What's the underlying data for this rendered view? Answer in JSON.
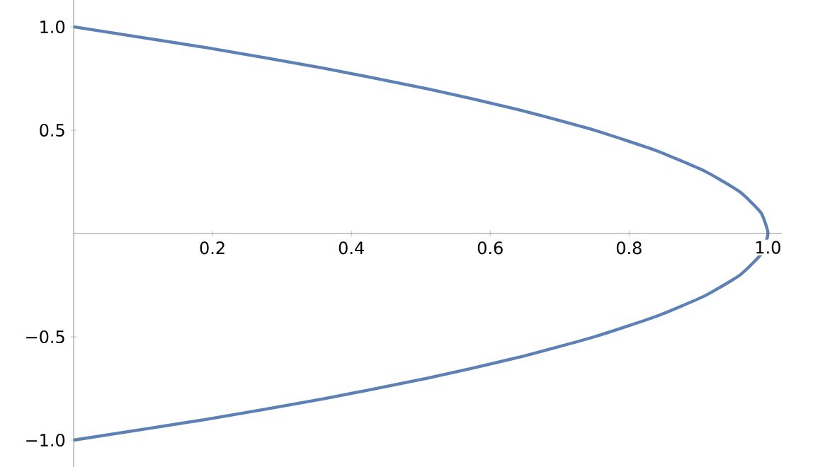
{
  "chart_data": {
    "type": "line",
    "xlim": [
      0,
      1.02
    ],
    "ylim": [
      -1.13,
      1.13
    ],
    "xticks": [
      {
        "value": 0.2,
        "label": "0.2"
      },
      {
        "value": 0.4,
        "label": "0.4"
      },
      {
        "value": 0.6,
        "label": "0.6"
      },
      {
        "value": 0.8,
        "label": "0.8"
      },
      {
        "value": 1.0,
        "label": "1.0"
      }
    ],
    "yticks": [
      {
        "value": -1.0,
        "label": "−1.0"
      },
      {
        "value": -0.5,
        "label": "−0.5"
      },
      {
        "value": 0.5,
        "label": "0.5"
      },
      {
        "value": 1.0,
        "label": "1.0"
      }
    ],
    "series": [
      {
        "color": "#5e81b5",
        "x": [
          0,
          0.19,
          0.36,
          0.51,
          0.64,
          0.75,
          0.84,
          0.91,
          0.96,
          0.99,
          1.0,
          0.99,
          0.96,
          0.91,
          0.84,
          0.75,
          0.64,
          0.51,
          0.36,
          0.19,
          0
        ],
        "values": [
          1.0,
          0.9,
          0.8,
          0.7,
          0.6,
          0.5,
          0.4,
          0.3,
          0.2,
          0.1,
          0,
          -0.1,
          -0.2,
          -0.3,
          -0.4,
          -0.5,
          -0.6,
          -0.7,
          -0.8,
          -0.9,
          -1.0
        ]
      }
    ],
    "grid": false
  }
}
